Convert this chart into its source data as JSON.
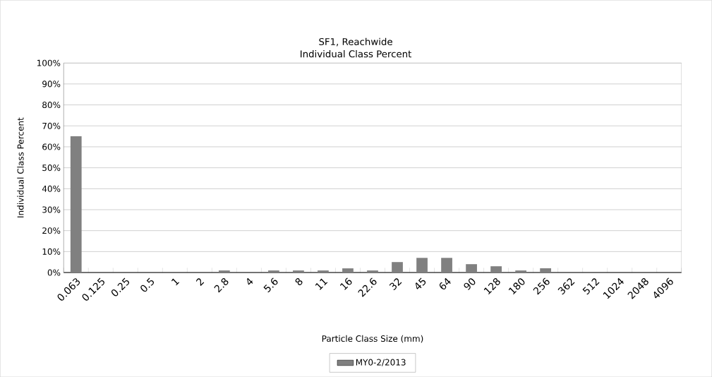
{
  "chart_data": {
    "type": "bar",
    "title": "SF1, Reachwide",
    "subtitle": "Individual Class Percent",
    "xlabel": "Particle Class Size (mm)",
    "ylabel": "Individual Class Percent",
    "categories": [
      "0.063",
      "0.125",
      "0.25",
      "0.5",
      "1",
      "2",
      "2.8",
      "4",
      "5.6",
      "8",
      "11",
      "16",
      "22.6",
      "32",
      "45",
      "64",
      "90",
      "128",
      "180",
      "256",
      "362",
      "512",
      "1024",
      "2048",
      "4096"
    ],
    "series": [
      {
        "name": "MY0-2/2013",
        "color": "#808080",
        "values": [
          65,
          0,
          0,
          0,
          0,
          0,
          1,
          0,
          1,
          1,
          1,
          2,
          1,
          5,
          7,
          7,
          4,
          3,
          1,
          2,
          0,
          0,
          0,
          0,
          0
        ]
      }
    ],
    "ylim": [
      0,
      100
    ],
    "yticks": [
      {
        "value": 0,
        "label": "0%"
      },
      {
        "value": 10,
        "label": "10%"
      },
      {
        "value": 20,
        "label": "20%"
      },
      {
        "value": 30,
        "label": "30%"
      },
      {
        "value": 40,
        "label": "40%"
      },
      {
        "value": 50,
        "label": "50%"
      },
      {
        "value": 60,
        "label": "60%"
      },
      {
        "value": 70,
        "label": "70%"
      },
      {
        "value": 80,
        "label": "80%"
      },
      {
        "value": 90,
        "label": "90%"
      },
      {
        "value": 100,
        "label": "100%"
      }
    ],
    "grid": "y",
    "legend": "bottom"
  }
}
